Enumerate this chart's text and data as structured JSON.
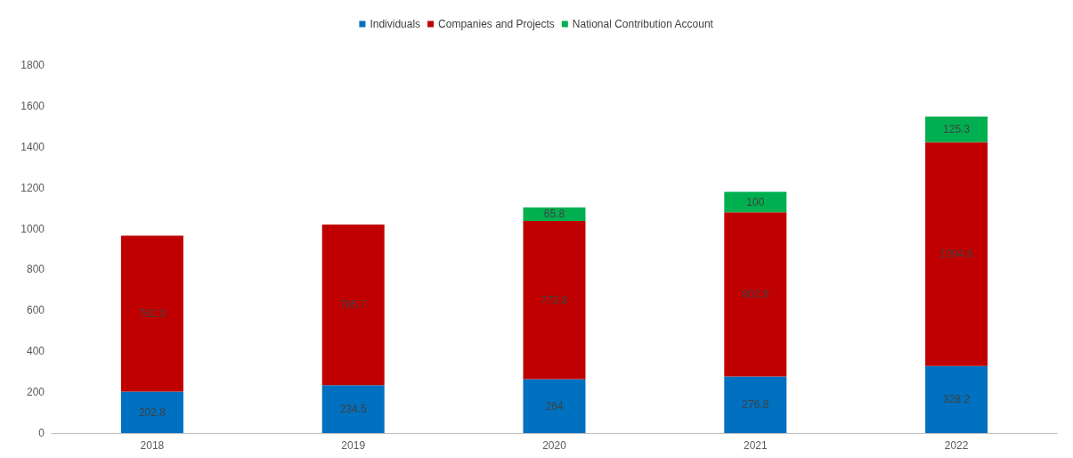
{
  "chart_data": {
    "type": "bar",
    "stacked": true,
    "categories": [
      "2018",
      "2019",
      "2020",
      "2021",
      "2022"
    ],
    "series": [
      {
        "name": "Individuals",
        "color": "#0070c0",
        "values": [
          202.8,
          234.5,
          264,
          276.8,
          328.2
        ]
      },
      {
        "name": "Companies and Projects",
        "color": "#c00000",
        "values": [
          762.3,
          785.7,
          773.8,
          802.8,
          1094.6
        ]
      },
      {
        "name": "National Contribution Account",
        "color": "#00b050",
        "values": [
          null,
          null,
          65.8,
          100,
          125.3
        ]
      }
    ],
    "ylim": [
      0,
      1800
    ],
    "yticks": [
      0,
      200,
      400,
      600,
      800,
      1000,
      1200,
      1400,
      1600,
      1800
    ],
    "grid": false,
    "legend": "top",
    "data_labels": true
  }
}
